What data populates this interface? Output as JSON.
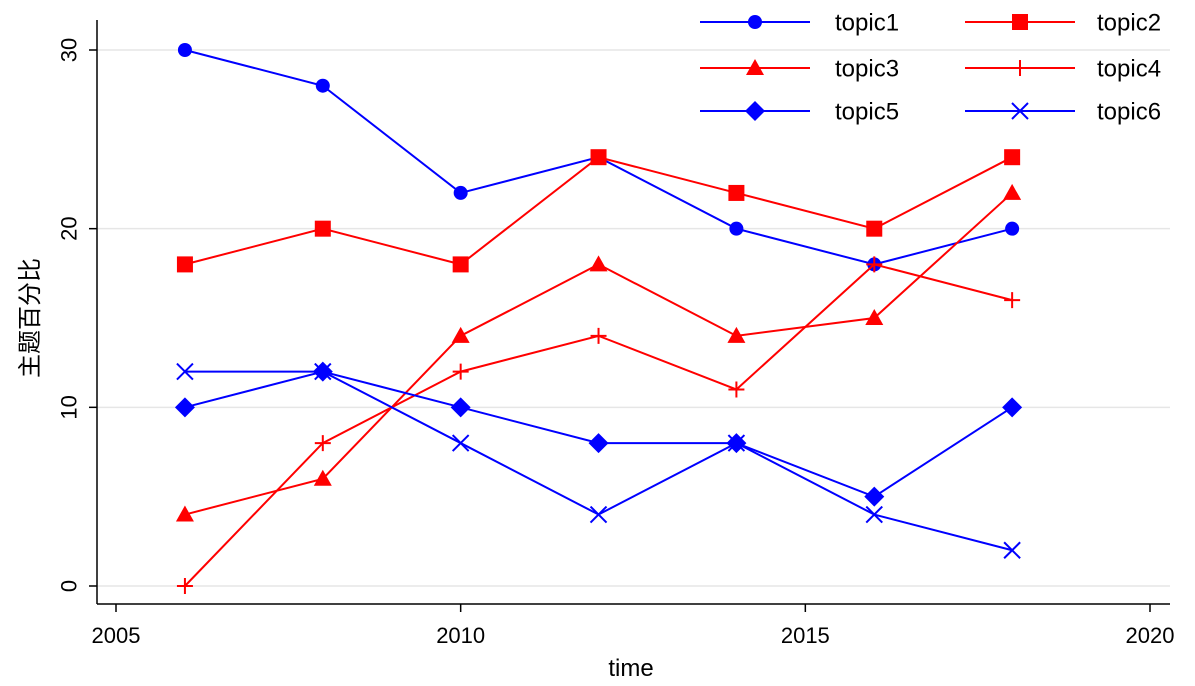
{
  "chart_data": {
    "type": "line",
    "xlabel": "time",
    "ylabel": "主题百分比",
    "xlim": [
      2005,
      2020
    ],
    "ylim": [
      0,
      30
    ],
    "xticks": [
      "2005",
      "2010",
      "2015",
      "2020"
    ],
    "yticks": [
      "0",
      "10",
      "20",
      "30"
    ],
    "grid": "horizontal",
    "legend_position": "top-right",
    "x": [
      2006,
      2008,
      2010,
      2012,
      2014,
      2016,
      2018
    ],
    "series": [
      {
        "name": "topic1",
        "color": "#0000ff",
        "marker": "circle",
        "values": [
          30,
          28,
          22,
          24,
          20,
          18,
          20
        ]
      },
      {
        "name": "topic2",
        "color": "#ff0000",
        "marker": "square",
        "values": [
          18,
          20,
          18,
          24,
          22,
          20,
          24
        ]
      },
      {
        "name": "topic3",
        "color": "#ff0000",
        "marker": "triangle",
        "values": [
          4,
          6,
          14,
          18,
          14,
          15,
          22
        ]
      },
      {
        "name": "topic4",
        "color": "#ff0000",
        "marker": "plus",
        "values": [
          0,
          8,
          12,
          14,
          11,
          18,
          16
        ]
      },
      {
        "name": "topic5",
        "color": "#0000ff",
        "marker": "diamond",
        "values": [
          10,
          12,
          10,
          8,
          8,
          5,
          10
        ]
      },
      {
        "name": "topic6",
        "color": "#0000ff",
        "marker": "x",
        "values": [
          12,
          12,
          8,
          4,
          8,
          4,
          2
        ]
      }
    ]
  }
}
